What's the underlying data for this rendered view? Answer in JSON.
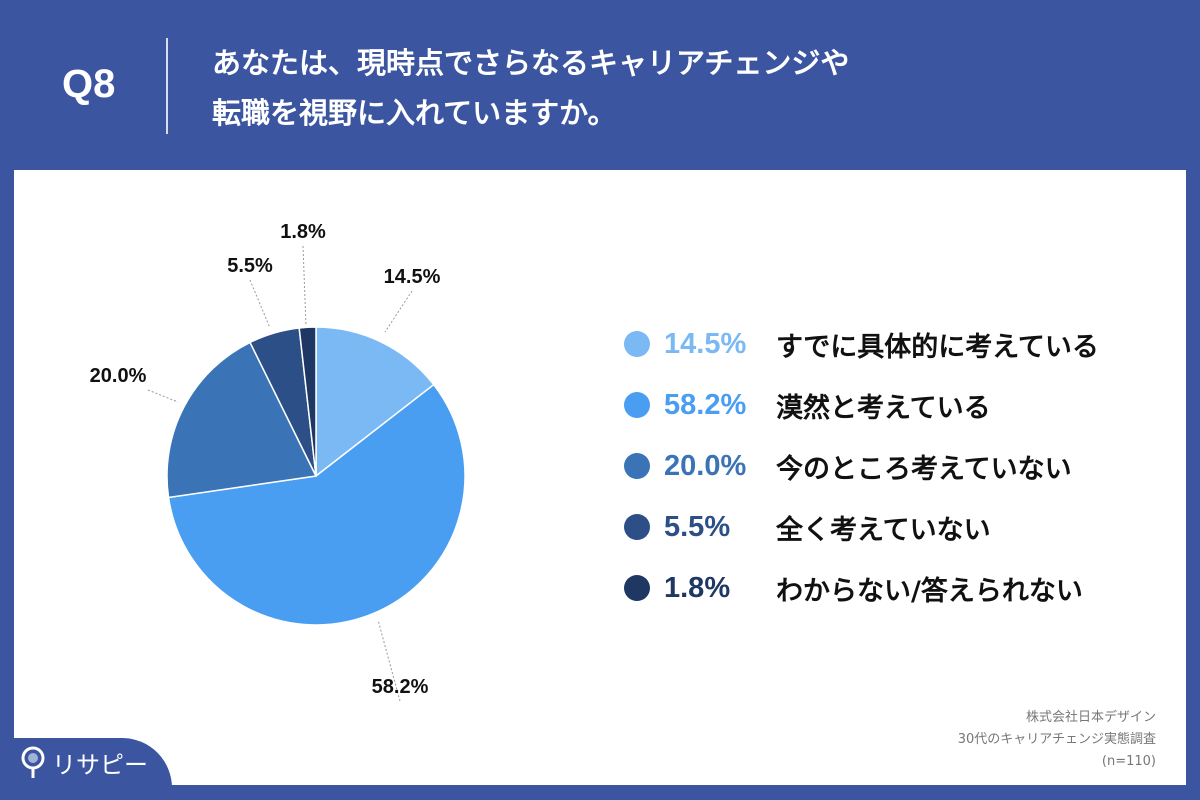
{
  "header": {
    "q": "Q8",
    "title_line1": "あなたは、現時点でさらなるキャリアチェンジや",
    "title_line2": "転職を視野に入れていますか。"
  },
  "chart_data": {
    "type": "pie",
    "start": "top",
    "direction": "clockwise",
    "slices": [
      {
        "label": "すでに具体的に考えている",
        "value": 14.5,
        "value_label": "14.5%",
        "color": "#7ab9f4"
      },
      {
        "label": "漠然と考えている",
        "value": 58.2,
        "value_label": "58.2%",
        "color": "#4a9ef2"
      },
      {
        "label": "今のところ考えていない",
        "value": 20.0,
        "value_label": "20.0%",
        "color": "#3a74b6"
      },
      {
        "label": "全く考えていない",
        "value": 5.5,
        "value_label": "5.5%",
        "color": "#2b4f86"
      },
      {
        "label": "わからない/答えられない",
        "value": 1.8,
        "value_label": "1.8%",
        "color": "#1e3763"
      }
    ],
    "legend": "right"
  },
  "source": {
    "line1": "株式会社日本デザイン",
    "line2": "30代のキャリアチェンジ実態調査",
    "line3": "(n=110)"
  },
  "logo": {
    "text": "リサピー"
  }
}
